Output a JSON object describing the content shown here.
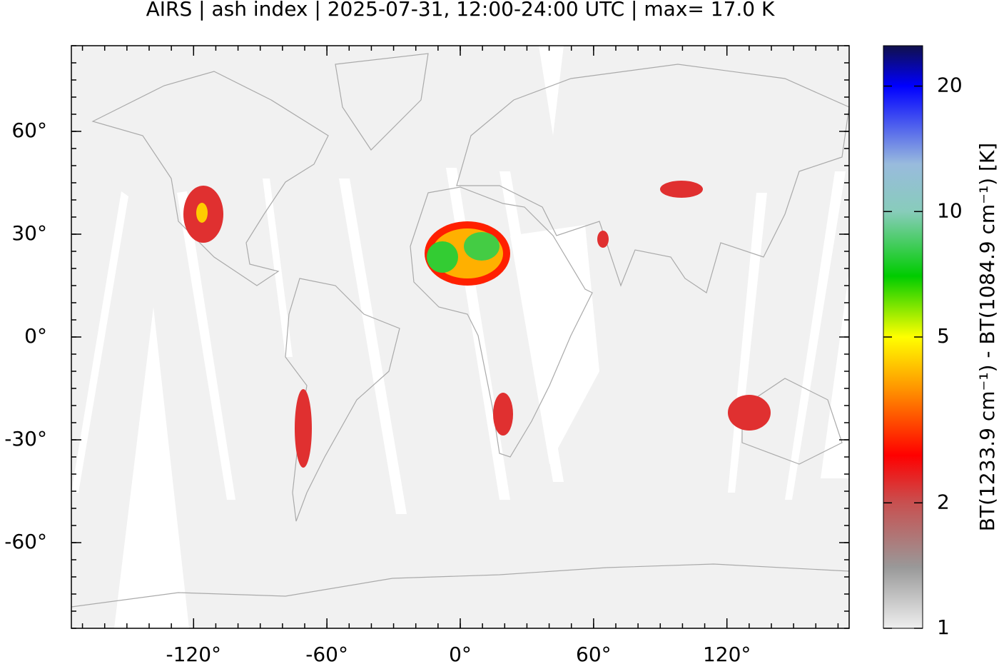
{
  "chart_data": {
    "type": "map",
    "title": "AIRS | ash index | 2025-07-31, 12:00-24:00 UTC | max= 17.0 K",
    "xlim": [
      -175,
      175
    ],
    "ylim": [
      -85,
      85
    ],
    "xticks": [
      {
        "value": -120,
        "label": "-120°"
      },
      {
        "value": -60,
        "label": "-60°"
      },
      {
        "value": 0,
        "label": "0°"
      },
      {
        "value": 60,
        "label": "60°"
      },
      {
        "value": 120,
        "label": "120°"
      }
    ],
    "yticks": [
      {
        "value": -60,
        "label": "-60°"
      },
      {
        "value": -30,
        "label": "-30°"
      },
      {
        "value": 0,
        "label": "0°"
      },
      {
        "value": 30,
        "label": "30°"
      },
      {
        "value": 60,
        "label": "60°"
      }
    ],
    "colorbar": {
      "label": "BT(1233.9 cm⁻¹) - BT(1084.9 cm⁻¹) [K]",
      "scale": "log",
      "lim": [
        1,
        25
      ],
      "ticks": [
        1,
        2,
        5,
        10,
        20
      ],
      "colormap": [
        [
          1,
          "#eeeeee"
        ],
        [
          1.4,
          "#999999"
        ],
        [
          2,
          "#c85050"
        ],
        [
          2.6,
          "#ff0000"
        ],
        [
          3.8,
          "#ff9900"
        ],
        [
          5,
          "#ffff00"
        ],
        [
          7,
          "#00cc00"
        ],
        [
          10,
          "#88ccbb"
        ],
        [
          13,
          "#99bbdd"
        ],
        [
          20,
          "#0000ff"
        ],
        [
          25,
          "#10104a"
        ]
      ]
    }
  }
}
